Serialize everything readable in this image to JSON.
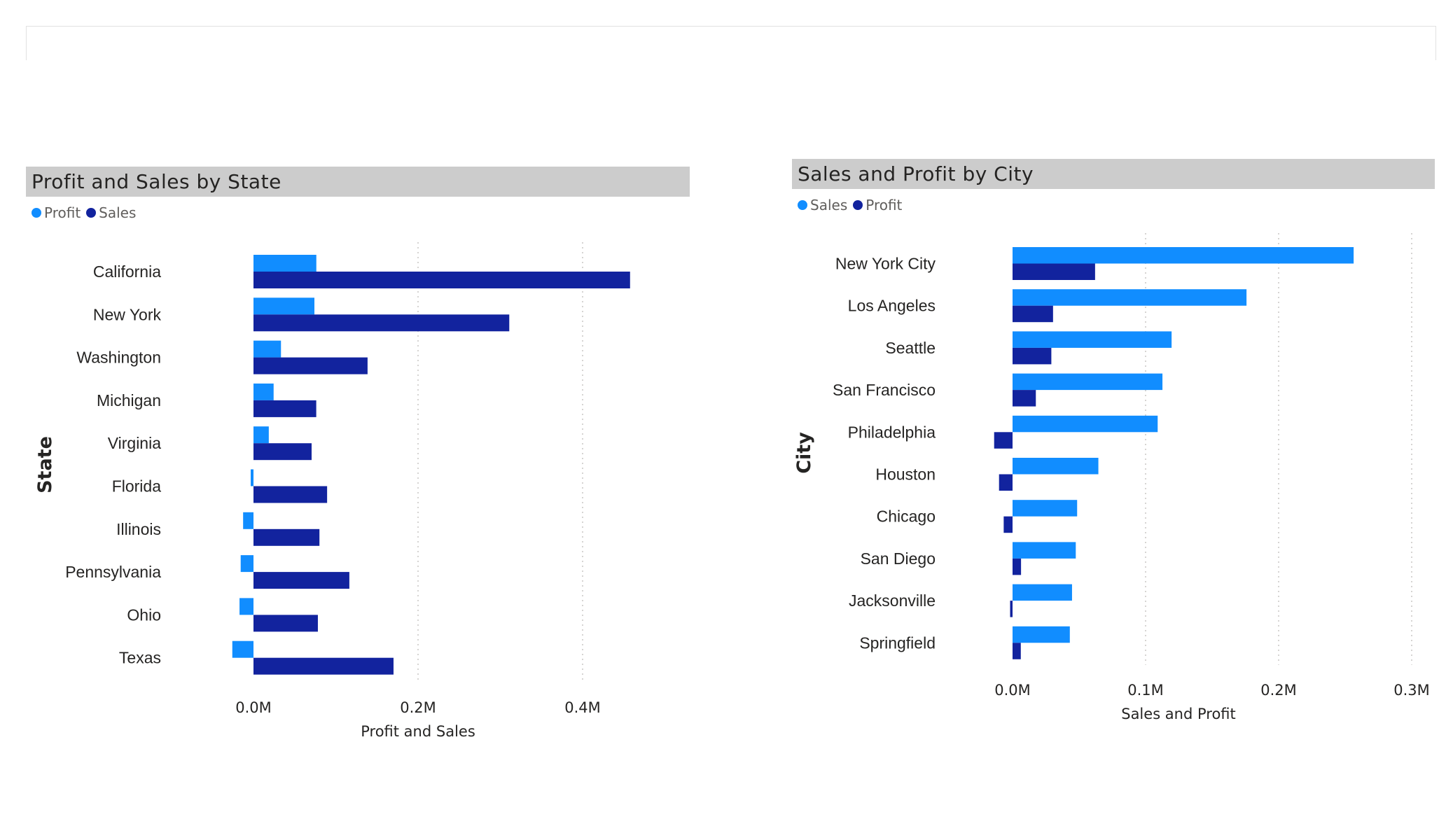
{
  "colors": {
    "light": "#118dff",
    "dark": "#12239e"
  },
  "chart_data": [
    {
      "type": "bar",
      "orientation": "horizontal",
      "title": "Profit and Sales by State",
      "xlabel": "Profit and Sales",
      "ylabel": "State",
      "legend_position": "top-left",
      "legend": [
        "Profit",
        "Sales"
      ],
      "categories": [
        "California",
        "New York",
        "Washington",
        "Michigan",
        "Virginia",
        "Florida",
        "Illinois",
        "Pennsylvania",
        "Ohio",
        "Texas"
      ],
      "series": [
        {
          "name": "Profit",
          "color": "#118dff",
          "values": [
            76381,
            74039,
            33403,
            24463,
            18598,
            -3399,
            -12608,
            -15560,
            -16971,
            -25729
          ]
        },
        {
          "name": "Sales",
          "color": "#12239e",
          "values": [
            457688,
            310876,
            138641,
            76270,
            70637,
            89474,
            80166,
            116512,
            78258,
            170188
          ]
        }
      ],
      "xlim": [
        -35000,
        500000
      ],
      "xticks": [
        {
          "value": 0,
          "label": "0.0M"
        },
        {
          "value": 200000,
          "label": "0.2M"
        },
        {
          "value": 400000,
          "label": "0.4M"
        }
      ],
      "grid": true
    },
    {
      "type": "bar",
      "orientation": "horizontal",
      "title": "Sales and Profit by City",
      "xlabel": "Sales and Profit",
      "ylabel": "City",
      "legend_position": "top-left",
      "legend": [
        "Sales",
        "Profit"
      ],
      "categories": [
        "New York City",
        "Los Angeles",
        "Seattle",
        "San Francisco",
        "Philadelphia",
        "Houston",
        "Chicago",
        "San Diego",
        "Jacksonville",
        "Springfield"
      ],
      "series": [
        {
          "name": "Sales",
          "color": "#118dff",
          "values": [
            256368,
            175851,
            119541,
            112669,
            109077,
            64505,
            48540,
            47521,
            44713,
            43054
          ]
        },
        {
          "name": "Profit",
          "color": "#12239e",
          "values": [
            62037,
            30441,
            29156,
            17508,
            -13838,
            -10154,
            -6655,
            6378,
            -1844,
            6200
          ]
        }
      ],
      "xlim": [
        -15000,
        305000
      ],
      "xticks": [
        {
          "value": 0,
          "label": "0.0M"
        },
        {
          "value": 100000,
          "label": "0.1M"
        },
        {
          "value": 200000,
          "label": "0.2M"
        },
        {
          "value": 300000,
          "label": "0.3M"
        }
      ],
      "grid": true
    }
  ]
}
